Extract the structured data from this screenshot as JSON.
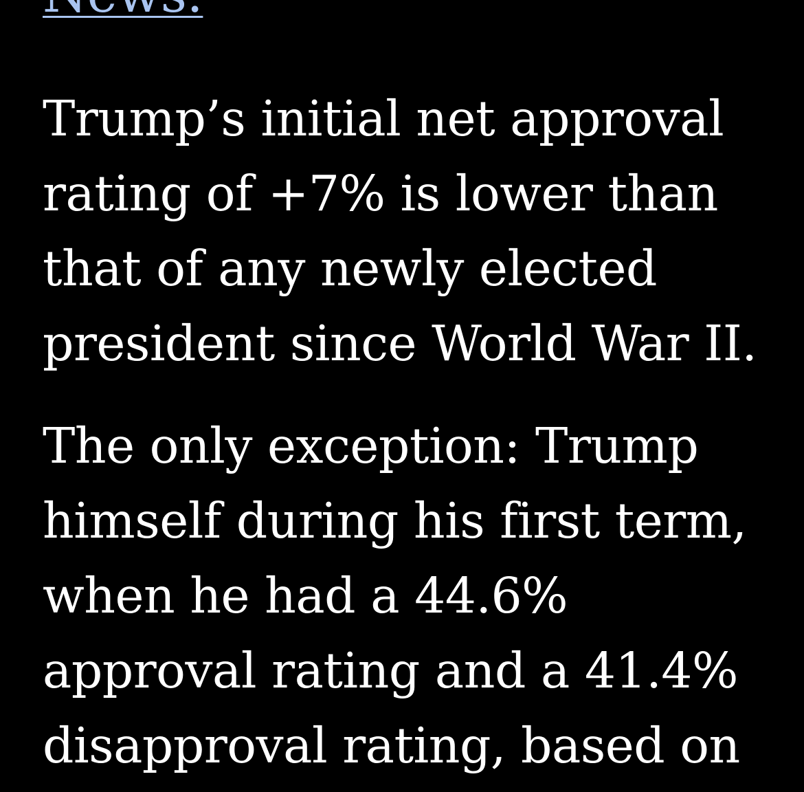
{
  "article": {
    "link_text": "News.",
    "paragraphs": [
      "Trump’s initial net approval\nrating of +7% is lower than\nthat of any newly elected\npresident since World War II.",
      "The only exception: Trump\nhimself during his first term,\nwhen he had a 44.6%\napproval rating and a 41.4%\ndisapproval rating, based on"
    ]
  },
  "colors": {
    "background": "#000000",
    "text": "#ffffff",
    "link": "#a9c4f0"
  }
}
